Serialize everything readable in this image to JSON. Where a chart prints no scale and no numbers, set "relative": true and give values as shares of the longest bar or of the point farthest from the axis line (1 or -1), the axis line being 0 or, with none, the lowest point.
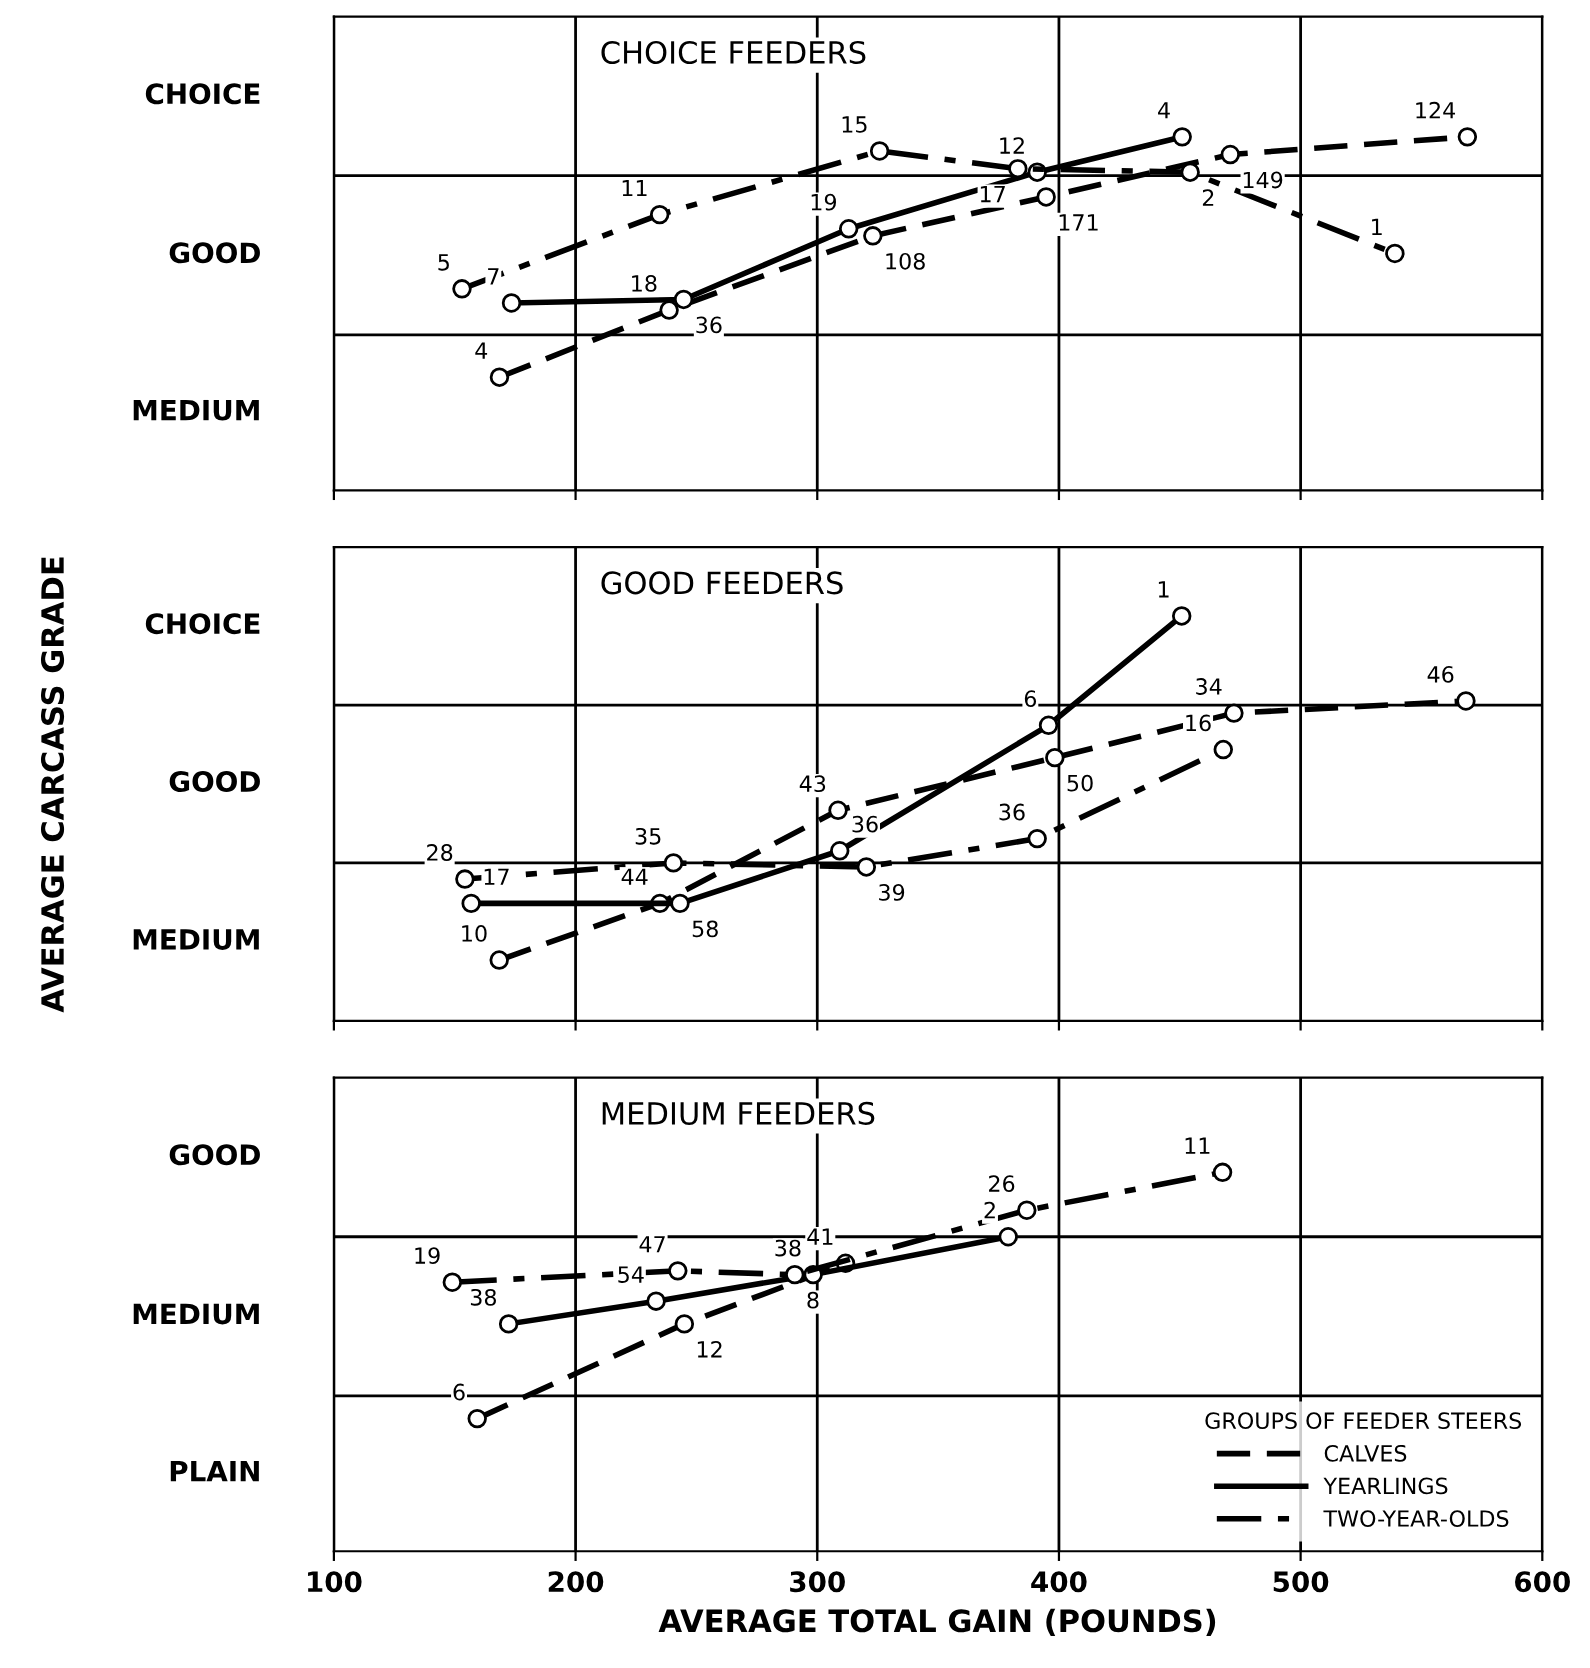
{
  "chart_data": [
    {
      "type": "line",
      "title": "CHOICE FEEDERS",
      "relative": true,
      "tick_labels": false,
      "grid": "x",
      "marker": "circle",
      "xlim": [
        100,
        600
      ],
      "xticks": [
        100,
        200,
        300,
        400,
        500,
        600
      ],
      "ref_lines": [
        {
          "axis": "y",
          "value": 0.44
        },
        {
          "axis": "y",
          "value": 0.89
        }
      ],
      "series": [
        {
          "color": "#000000",
          "line_style": "dashed",
          "x": [
            168.5,
            238.7,
            323,
            394.7,
            470.9,
            569
          ],
          "values": [
            0.32,
            0.51,
            0.72,
            0.83,
            0.95,
            1.0
          ]
        },
        {
          "color": "#000000",
          "line_style": "solid",
          "x": [
            173.5,
            244.7,
            313,
            391,
            451
          ],
          "values": [
            0.53,
            0.54,
            0.74,
            0.9,
            1.0
          ]
        },
        {
          "color": "#000000",
          "line_style": "dashdot",
          "x": [
            153,
            234.8,
            325.8,
            383,
            454.3,
            539
          ],
          "values": [
            0.57,
            0.78,
            0.96,
            0.91,
            0.9,
            0.67
          ]
        }
      ],
      "annotations": [
        "MEDIUM",
        "GOOD",
        "CHOICE",
        {
          "text": "4",
          "x": 168.5,
          "y": 0.32
        },
        {
          "text": "18",
          "x": 238.7,
          "y": 0.51
        },
        {
          "text": "108",
          "x": 323,
          "y": 0.72
        },
        {
          "text": "171",
          "x": 394.7,
          "y": 0.83
        },
        {
          "text": "149",
          "x": 470.9,
          "y": 0.95
        },
        {
          "text": "124",
          "x": 569,
          "y": 1.0
        },
        {
          "text": "7",
          "x": 173.5,
          "y": 0.53
        },
        {
          "text": "36",
          "x": 244.7,
          "y": 0.54
        },
        {
          "text": "19",
          "x": 313,
          "y": 0.74
        },
        {
          "text": "12",
          "x": 391,
          "y": 0.9
        },
        {
          "text": "4",
          "x": 451,
          "y": 1.0
        },
        {
          "text": "5",
          "x": 153,
          "y": 0.57
        },
        {
          "text": "11",
          "x": 234.8,
          "y": 0.78
        },
        {
          "text": "15",
          "x": 325.8,
          "y": 0.96
        },
        {
          "text": "17",
          "x": 383,
          "y": 0.91
        },
        {
          "text": "2",
          "x": 454.3,
          "y": 0.9
        },
        {
          "text": "1",
          "x": 539,
          "y": 0.67
        }
      ]
    },
    {
      "type": "line",
      "title": "GOOD FEEDERS",
      "ylabel": "AVERAGE CARCASS GRADE",
      "relative": true,
      "tick_labels": false,
      "grid": "x",
      "marker": "circle",
      "xlim": [
        100,
        600
      ],
      "xticks": [
        100,
        200,
        300,
        400,
        500,
        600
      ],
      "ref_lines": [
        {
          "axis": "y",
          "value": 0.39
        },
        {
          "axis": "y",
          "value": 0.78
        }
      ],
      "series": [
        {
          "color": "#000000",
          "line_style": "dashed",
          "x": [
            168.4,
            234.9,
            308.6,
            398.3,
            472.4,
            568.4
          ],
          "values": [
            0.15,
            0.29,
            0.52,
            0.65,
            0.76,
            0.79
          ]
        },
        {
          "color": "#000000",
          "line_style": "solid",
          "x": [
            156.8,
            243.2,
            309.3,
            395.7,
            450.8
          ],
          "values": [
            0.29,
            0.29,
            0.42,
            0.73,
            1.0
          ]
        },
        {
          "color": "#000000",
          "line_style": "dashdot",
          "x": [
            154.2,
            240.5,
            320.3,
            391,
            468
          ],
          "values": [
            0.35,
            0.39,
            0.38,
            0.45,
            0.67
          ]
        }
      ],
      "annotations": [
        "MEDIUM",
        "GOOD",
        "CHOICE",
        {
          "text": "10",
          "x": 168.4,
          "y": 0.15
        },
        {
          "text": "44",
          "x": 234.9,
          "y": 0.29
        },
        {
          "text": "43",
          "x": 308.6,
          "y": 0.52
        },
        {
          "text": "50",
          "x": 398.3,
          "y": 0.65
        },
        {
          "text": "34",
          "x": 472.4,
          "y": 0.76
        },
        {
          "text": "46",
          "x": 568.4,
          "y": 0.79
        },
        {
          "text": "17",
          "x": 156.8,
          "y": 0.29
        },
        {
          "text": "58",
          "x": 243.2,
          "y": 0.29
        },
        {
          "text": "36",
          "x": 309.3,
          "y": 0.42
        },
        {
          "text": "6",
          "x": 395.7,
          "y": 0.73
        },
        {
          "text": "1",
          "x": 450.8,
          "y": 1.0
        },
        {
          "text": "28",
          "x": 154.2,
          "y": 0.35
        },
        {
          "text": "35",
          "x": 240.5,
          "y": 0.39
        },
        {
          "text": "39",
          "x": 320.3,
          "y": 0.38
        },
        {
          "text": "36",
          "x": 391,
          "y": 0.45
        },
        {
          "text": "16",
          "x": 468,
          "y": 0.67
        }
      ]
    },
    {
      "type": "line",
      "title": "MEDIUM FEEDERS",
      "xlabel": "AVERAGE TOTAL GAIN (POUNDS)",
      "relative": true,
      "grid": "x",
      "marker": "circle",
      "legend": "bottom right",
      "legend_title": "GROUPS OF FEEDER STEERS",
      "xlim": [
        100,
        600
      ],
      "xticks": [
        100,
        200,
        300,
        400,
        500,
        600
      ],
      "ref_lines": [
        {
          "axis": "y",
          "value": 0.41
        },
        {
          "axis": "y",
          "value": 0.83
        }
      ],
      "series": [
        {
          "name": "CALVES",
          "color": "#000000",
          "line_style": "dashed",
          "x": [
            159.3,
            245,
            311.7
          ],
          "values": [
            0.35,
            0.6,
            0.76
          ]
        },
        {
          "name": "YEARLINGS",
          "color": "#000000",
          "line_style": "solid",
          "x": [
            172.3,
            233.3,
            298.3,
            379
          ],
          "values": [
            0.6,
            0.66,
            0.73,
            0.83
          ]
        },
        {
          "name": "TWO-YEAR-OLDS",
          "color": "#000000",
          "line_style": "dashdot",
          "x": [
            149,
            242.3,
            290.7,
            386.7,
            467.7
          ],
          "values": [
            0.71,
            0.74,
            0.73,
            0.9,
            1.0
          ]
        }
      ],
      "annotations": [
        "PLAIN",
        "MEDIUM",
        "GOOD",
        {
          "text": "6",
          "x": 159.3,
          "y": 0.35
        },
        {
          "text": "12",
          "x": 245,
          "y": 0.6
        },
        {
          "text": "41",
          "x": 311.7,
          "y": 0.76
        },
        {
          "text": "38",
          "x": 172.3,
          "y": 0.6
        },
        {
          "text": "54",
          "x": 233.3,
          "y": 0.66
        },
        {
          "text": "38",
          "x": 298.3,
          "y": 0.73
        },
        {
          "text": "2",
          "x": 379,
          "y": 0.83
        },
        {
          "text": "19",
          "x": 149,
          "y": 0.71
        },
        {
          "text": "47",
          "x": 242.3,
          "y": 0.74
        },
        {
          "text": "8",
          "x": 290.7,
          "y": 0.73
        },
        {
          "text": "26",
          "x": 386.7,
          "y": 0.9
        },
        {
          "text": "11",
          "x": 467.7,
          "y": 1.0
        }
      ]
    }
  ]
}
